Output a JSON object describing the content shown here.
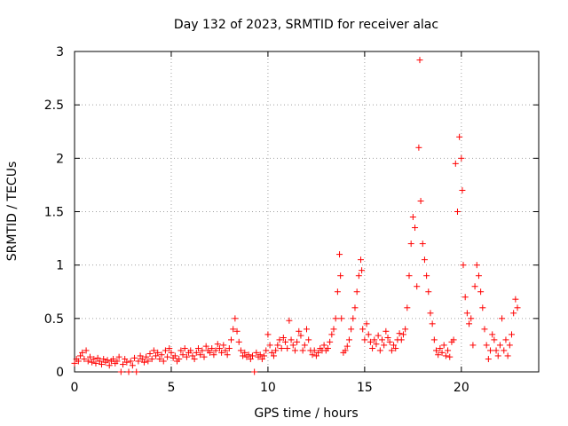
{
  "chart_data": {
    "type": "scatter",
    "title": "Day 132 of 2023, SRMTID for receiver alac",
    "xlabel": "GPS time / hours",
    "ylabel": "SRMTID / TECUs",
    "xlim": [
      0,
      24
    ],
    "ylim": [
      0,
      3
    ],
    "xticks": [
      0,
      5,
      10,
      15,
      20
    ],
    "yticks": [
      0,
      0.5,
      1,
      1.5,
      2,
      2.5,
      3
    ],
    "xtick_labels": [
      "0",
      "5",
      "10",
      "15",
      "20"
    ],
    "ytick_labels": [
      "0",
      "0.5",
      "1",
      "1.5",
      "2",
      "2.5",
      "3"
    ],
    "grid": true,
    "marker": "+",
    "color": "#ff0000",
    "series": [
      {
        "name": "SRMTID",
        "points": [
          [
            0.0,
            0.08
          ],
          [
            0.1,
            0.12
          ],
          [
            0.2,
            0.1
          ],
          [
            0.3,
            0.15
          ],
          [
            0.4,
            0.18
          ],
          [
            0.5,
            0.12
          ],
          [
            0.6,
            0.2
          ],
          [
            0.7,
            0.1
          ],
          [
            0.8,
            0.14
          ],
          [
            0.9,
            0.09
          ],
          [
            1.0,
            0.12
          ],
          [
            1.1,
            0.08
          ],
          [
            1.2,
            0.13
          ],
          [
            1.3,
            0.1
          ],
          [
            1.4,
            0.07
          ],
          [
            1.5,
            0.12
          ],
          [
            1.6,
            0.09
          ],
          [
            1.7,
            0.11
          ],
          [
            1.8,
            0.06
          ],
          [
            1.9,
            0.1
          ],
          [
            2.0,
            0.12
          ],
          [
            2.1,
            0.08
          ],
          [
            2.2,
            0.1
          ],
          [
            2.3,
            0.14
          ],
          [
            2.4,
            0.0
          ],
          [
            2.5,
            0.07
          ],
          [
            2.6,
            0.12
          ],
          [
            2.7,
            0.09
          ],
          [
            2.8,
            0.0
          ],
          [
            2.9,
            0.1
          ],
          [
            3.0,
            0.06
          ],
          [
            3.1,
            0.13
          ],
          [
            3.2,
            0.0
          ],
          [
            3.3,
            0.1
          ],
          [
            3.4,
            0.15
          ],
          [
            3.5,
            0.12
          ],
          [
            3.6,
            0.09
          ],
          [
            3.7,
            0.14
          ],
          [
            3.8,
            0.1
          ],
          [
            3.9,
            0.17
          ],
          [
            4.0,
            0.12
          ],
          [
            4.1,
            0.2
          ],
          [
            4.2,
            0.15
          ],
          [
            4.3,
            0.18
          ],
          [
            4.4,
            0.12
          ],
          [
            4.5,
            0.16
          ],
          [
            4.6,
            0.1
          ],
          [
            4.7,
            0.2
          ],
          [
            4.8,
            0.14
          ],
          [
            4.9,
            0.22
          ],
          [
            5.0,
            0.18
          ],
          [
            5.1,
            0.13
          ],
          [
            5.2,
            0.15
          ],
          [
            5.3,
            0.1
          ],
          [
            5.4,
            0.12
          ],
          [
            5.5,
            0.2
          ],
          [
            5.6,
            0.16
          ],
          [
            5.7,
            0.22
          ],
          [
            5.8,
            0.14
          ],
          [
            5.9,
            0.18
          ],
          [
            6.0,
            0.2
          ],
          [
            6.1,
            0.15
          ],
          [
            6.2,
            0.12
          ],
          [
            6.3,
            0.18
          ],
          [
            6.4,
            0.22
          ],
          [
            6.5,
            0.16
          ],
          [
            6.6,
            0.2
          ],
          [
            6.7,
            0.14
          ],
          [
            6.8,
            0.24
          ],
          [
            6.9,
            0.2
          ],
          [
            7.0,
            0.18
          ],
          [
            7.1,
            0.22
          ],
          [
            7.2,
            0.16
          ],
          [
            7.3,
            0.2
          ],
          [
            7.4,
            0.26
          ],
          [
            7.5,
            0.22
          ],
          [
            7.6,
            0.18
          ],
          [
            7.7,
            0.25
          ],
          [
            7.8,
            0.2
          ],
          [
            7.9,
            0.16
          ],
          [
            8.0,
            0.22
          ],
          [
            8.1,
            0.3
          ],
          [
            8.2,
            0.4
          ],
          [
            8.3,
            0.5
          ],
          [
            8.4,
            0.38
          ],
          [
            8.5,
            0.28
          ],
          [
            8.6,
            0.2
          ],
          [
            8.7,
            0.15
          ],
          [
            8.8,
            0.18
          ],
          [
            8.9,
            0.14
          ],
          [
            9.0,
            0.16
          ],
          [
            9.1,
            0.12
          ],
          [
            9.2,
            0.15
          ],
          [
            9.3,
            0.0
          ],
          [
            9.4,
            0.18
          ],
          [
            9.5,
            0.14
          ],
          [
            9.6,
            0.16
          ],
          [
            9.7,
            0.12
          ],
          [
            9.8,
            0.15
          ],
          [
            9.9,
            0.2
          ],
          [
            10.0,
            0.35
          ],
          [
            10.1,
            0.25
          ],
          [
            10.2,
            0.18
          ],
          [
            10.3,
            0.15
          ],
          [
            10.4,
            0.2
          ],
          [
            10.5,
            0.25
          ],
          [
            10.6,
            0.3
          ],
          [
            10.7,
            0.22
          ],
          [
            10.8,
            0.32
          ],
          [
            10.9,
            0.28
          ],
          [
            11.0,
            0.22
          ],
          [
            11.1,
            0.48
          ],
          [
            11.2,
            0.3
          ],
          [
            11.3,
            0.25
          ],
          [
            11.4,
            0.2
          ],
          [
            11.5,
            0.28
          ],
          [
            11.6,
            0.38
          ],
          [
            11.7,
            0.34
          ],
          [
            11.8,
            0.2
          ],
          [
            11.9,
            0.25
          ],
          [
            12.0,
            0.4
          ],
          [
            12.1,
            0.3
          ],
          [
            12.2,
            0.2
          ],
          [
            12.3,
            0.16
          ],
          [
            12.4,
            0.2
          ],
          [
            12.5,
            0.15
          ],
          [
            12.6,
            0.18
          ],
          [
            12.7,
            0.22
          ],
          [
            12.8,
            0.2
          ],
          [
            12.9,
            0.25
          ],
          [
            13.0,
            0.2
          ],
          [
            13.1,
            0.22
          ],
          [
            13.2,
            0.28
          ],
          [
            13.3,
            0.35
          ],
          [
            13.4,
            0.4
          ],
          [
            13.5,
            0.5
          ],
          [
            13.6,
            0.75
          ],
          [
            13.7,
            1.1
          ],
          [
            13.75,
            0.9
          ],
          [
            13.8,
            0.5
          ],
          [
            13.9,
            0.18
          ],
          [
            14.0,
            0.2
          ],
          [
            14.1,
            0.24
          ],
          [
            14.2,
            0.3
          ],
          [
            14.3,
            0.4
          ],
          [
            14.4,
            0.5
          ],
          [
            14.5,
            0.6
          ],
          [
            14.6,
            0.75
          ],
          [
            14.7,
            0.9
          ],
          [
            14.8,
            1.05
          ],
          [
            14.85,
            0.95
          ],
          [
            14.9,
            0.4
          ],
          [
            15.0,
            0.3
          ],
          [
            15.1,
            0.45
          ],
          [
            15.2,
            0.35
          ],
          [
            15.3,
            0.28
          ],
          [
            15.4,
            0.22
          ],
          [
            15.5,
            0.3
          ],
          [
            15.6,
            0.26
          ],
          [
            15.7,
            0.34
          ],
          [
            15.8,
            0.2
          ],
          [
            15.9,
            0.3
          ],
          [
            16.0,
            0.25
          ],
          [
            16.1,
            0.38
          ],
          [
            16.2,
            0.32
          ],
          [
            16.3,
            0.28
          ],
          [
            16.4,
            0.2
          ],
          [
            16.5,
            0.25
          ],
          [
            16.6,
            0.22
          ],
          [
            16.7,
            0.3
          ],
          [
            16.8,
            0.36
          ],
          [
            16.9,
            0.3
          ],
          [
            17.0,
            0.35
          ],
          [
            17.1,
            0.4
          ],
          [
            17.2,
            0.6
          ],
          [
            17.3,
            0.9
          ],
          [
            17.4,
            1.2
          ],
          [
            17.5,
            1.45
          ],
          [
            17.6,
            1.35
          ],
          [
            17.7,
            0.8
          ],
          [
            17.8,
            2.1
          ],
          [
            17.85,
            2.92
          ],
          [
            17.9,
            1.6
          ],
          [
            18.0,
            1.2
          ],
          [
            18.1,
            1.05
          ],
          [
            18.2,
            0.9
          ],
          [
            18.3,
            0.75
          ],
          [
            18.4,
            0.55
          ],
          [
            18.5,
            0.45
          ],
          [
            18.6,
            0.3
          ],
          [
            18.7,
            0.2
          ],
          [
            18.8,
            0.16
          ],
          [
            18.9,
            0.22
          ],
          [
            19.0,
            0.18
          ],
          [
            19.1,
            0.25
          ],
          [
            19.2,
            0.15
          ],
          [
            19.3,
            0.2
          ],
          [
            19.4,
            0.14
          ],
          [
            19.5,
            0.28
          ],
          [
            19.6,
            0.3
          ],
          [
            19.7,
            1.95
          ],
          [
            19.8,
            1.5
          ],
          [
            19.9,
            2.2
          ],
          [
            20.0,
            2.0
          ],
          [
            20.05,
            1.7
          ],
          [
            20.1,
            1.0
          ],
          [
            20.2,
            0.7
          ],
          [
            20.3,
            0.55
          ],
          [
            20.4,
            0.45
          ],
          [
            20.5,
            0.5
          ],
          [
            20.6,
            0.25
          ],
          [
            20.7,
            0.8
          ],
          [
            20.8,
            1.0
          ],
          [
            20.9,
            0.9
          ],
          [
            21.0,
            0.75
          ],
          [
            21.1,
            0.6
          ],
          [
            21.2,
            0.4
          ],
          [
            21.3,
            0.25
          ],
          [
            21.4,
            0.12
          ],
          [
            21.5,
            0.2
          ],
          [
            21.6,
            0.35
          ],
          [
            21.7,
            0.3
          ],
          [
            21.8,
            0.2
          ],
          [
            21.9,
            0.15
          ],
          [
            22.0,
            0.25
          ],
          [
            22.1,
            0.5
          ],
          [
            22.2,
            0.2
          ],
          [
            22.3,
            0.3
          ],
          [
            22.4,
            0.15
          ],
          [
            22.5,
            0.25
          ],
          [
            22.6,
            0.35
          ],
          [
            22.7,
            0.55
          ],
          [
            22.8,
            0.68
          ],
          [
            22.9,
            0.6
          ]
        ]
      }
    ]
  }
}
